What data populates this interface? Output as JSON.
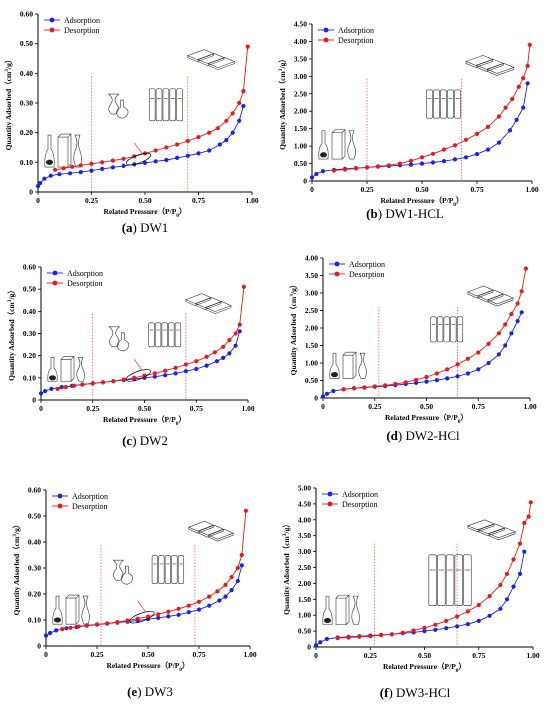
{
  "legend": {
    "adsorption": "Adsorption",
    "desorption": "Desorption"
  },
  "colors": {
    "adsorption": "#1a22e6",
    "desorption": "#e61a1a",
    "divider": "#e05050"
  },
  "x_axis_label": "Related Pressure（P/P",
  "x_axis_label_sub": "0",
  "x_axis_label_end": "）",
  "y_axis_label": "Quantity Adsorbed（cm",
  "y_axis_label_sup": "3",
  "y_axis_label_end": "/g）",
  "icons": [
    "ink-bottle-pore-icon",
    "slit-pore-icon",
    "cylindrical-pore-icon",
    "stacked-plate-pore-icon"
  ],
  "chart_data": [
    {
      "type": "line",
      "caption_letter": "(a)",
      "caption_name": "DW1",
      "xlim": [
        0,
        1.0
      ],
      "ylim": [
        0,
        0.6
      ],
      "xticks": [
        "0",
        "0.25",
        "0.50",
        "0.75",
        "1.00"
      ],
      "xtick_values": [
        0,
        0.25,
        0.5,
        0.75,
        1.0
      ],
      "yticks": [
        "0",
        "0.10",
        "0.20",
        "0.30",
        "0.40",
        "0.50",
        "0.60"
      ],
      "ytick_values": [
        0,
        0.1,
        0.2,
        0.3,
        0.4,
        0.5,
        0.6
      ],
      "dividers": [
        0.25,
        0.7
      ],
      "series": [
        {
          "name": "Adsorption",
          "x": [
            0.0,
            0.01,
            0.03,
            0.06,
            0.1,
            0.15,
            0.2,
            0.25,
            0.3,
            0.35,
            0.4,
            0.45,
            0.5,
            0.55,
            0.6,
            0.65,
            0.7,
            0.75,
            0.8,
            0.85,
            0.88,
            0.91,
            0.94,
            0.96
          ],
          "y": [
            0.02,
            0.03,
            0.045,
            0.055,
            0.06,
            0.063,
            0.067,
            0.072,
            0.078,
            0.083,
            0.088,
            0.093,
            0.098,
            0.103,
            0.108,
            0.115,
            0.122,
            0.13,
            0.14,
            0.16,
            0.175,
            0.2,
            0.24,
            0.29
          ]
        },
        {
          "name": "Desorption",
          "x": [
            0.08,
            0.12,
            0.16,
            0.2,
            0.25,
            0.3,
            0.35,
            0.4,
            0.45,
            0.5,
            0.55,
            0.6,
            0.65,
            0.7,
            0.75,
            0.8,
            0.84,
            0.88,
            0.91,
            0.94,
            0.96,
            0.98
          ],
          "y": [
            0.075,
            0.08,
            0.085,
            0.09,
            0.095,
            0.1,
            0.106,
            0.112,
            0.12,
            0.13,
            0.14,
            0.15,
            0.16,
            0.172,
            0.185,
            0.2,
            0.215,
            0.24,
            0.265,
            0.3,
            0.34,
            0.49
          ]
        }
      ]
    },
    {
      "type": "line",
      "caption_letter": "(b)",
      "caption_name": "DW1-HCL",
      "xlim": [
        0,
        1.0
      ],
      "ylim": [
        0,
        4.5
      ],
      "xticks": [
        "0",
        "0.25",
        "0.50",
        "0.75",
        "1.00"
      ],
      "xtick_values": [
        0,
        0.25,
        0.5,
        0.75,
        1.0
      ],
      "yticks": [
        "0",
        "0.50",
        "1.00",
        "1.50",
        "2.00",
        "2.50",
        "3.00",
        "3.50",
        "4.00",
        "4.50"
      ],
      "ytick_values": [
        0,
        0.5,
        1.0,
        1.5,
        2.0,
        2.5,
        3.0,
        3.5,
        4.0,
        4.5
      ],
      "dividers": [
        0.25,
        0.68
      ],
      "series": [
        {
          "name": "Adsorption",
          "x": [
            0.0,
            0.02,
            0.05,
            0.1,
            0.15,
            0.2,
            0.25,
            0.3,
            0.35,
            0.4,
            0.45,
            0.5,
            0.55,
            0.6,
            0.65,
            0.7,
            0.75,
            0.8,
            0.85,
            0.9,
            0.93,
            0.96,
            0.98
          ],
          "y": [
            0.1,
            0.2,
            0.28,
            0.32,
            0.35,
            0.37,
            0.39,
            0.41,
            0.43,
            0.45,
            0.47,
            0.5,
            0.53,
            0.57,
            0.62,
            0.68,
            0.77,
            0.9,
            1.1,
            1.45,
            1.75,
            2.1,
            2.8
          ]
        },
        {
          "name": "Desorption",
          "x": [
            0.1,
            0.15,
            0.2,
            0.25,
            0.3,
            0.35,
            0.4,
            0.45,
            0.5,
            0.55,
            0.6,
            0.65,
            0.7,
            0.75,
            0.8,
            0.85,
            0.88,
            0.91,
            0.94,
            0.96,
            0.98,
            0.99
          ],
          "y": [
            0.3,
            0.33,
            0.36,
            0.39,
            0.42,
            0.45,
            0.5,
            0.58,
            0.68,
            0.78,
            0.9,
            1.02,
            1.18,
            1.35,
            1.55,
            1.85,
            2.1,
            2.35,
            2.7,
            2.95,
            3.3,
            3.9
          ]
        }
      ]
    },
    {
      "type": "line",
      "caption_letter": "(c)",
      "caption_name": "DW2",
      "xlim": [
        0,
        1.0
      ],
      "ylim": [
        0,
        0.6
      ],
      "xticks": [
        "0",
        "0.25",
        "0.50",
        "0.75",
        "1.00"
      ],
      "xtick_values": [
        0,
        0.25,
        0.5,
        0.75,
        1.0
      ],
      "yticks": [
        "0",
        "0.10",
        "0.20",
        "0.30",
        "0.40",
        "0.50",
        "0.60"
      ],
      "ytick_values": [
        0,
        0.1,
        0.2,
        0.3,
        0.4,
        0.5,
        0.6
      ],
      "dividers": [
        0.25,
        0.7
      ],
      "series": [
        {
          "name": "Adsorption",
          "x": [
            0.0,
            0.02,
            0.05,
            0.1,
            0.15,
            0.2,
            0.25,
            0.3,
            0.35,
            0.4,
            0.45,
            0.5,
            0.55,
            0.6,
            0.65,
            0.7,
            0.75,
            0.8,
            0.85,
            0.88,
            0.91,
            0.94,
            0.96
          ],
          "y": [
            0.03,
            0.04,
            0.05,
            0.058,
            0.064,
            0.07,
            0.075,
            0.08,
            0.085,
            0.09,
            0.095,
            0.1,
            0.105,
            0.112,
            0.12,
            0.13,
            0.14,
            0.155,
            0.175,
            0.19,
            0.21,
            0.245,
            0.31
          ]
        },
        {
          "name": "Desorption",
          "x": [
            0.08,
            0.12,
            0.16,
            0.2,
            0.25,
            0.3,
            0.35,
            0.4,
            0.45,
            0.5,
            0.55,
            0.6,
            0.65,
            0.7,
            0.75,
            0.8,
            0.84,
            0.88,
            0.91,
            0.94,
            0.96,
            0.98
          ],
          "y": [
            0.05,
            0.058,
            0.065,
            0.07,
            0.075,
            0.08,
            0.085,
            0.092,
            0.1,
            0.11,
            0.12,
            0.132,
            0.145,
            0.16,
            0.175,
            0.195,
            0.215,
            0.24,
            0.27,
            0.3,
            0.34,
            0.51
          ]
        }
      ]
    },
    {
      "type": "line",
      "caption_letter": "(d)",
      "caption_name": "DW2-HCl",
      "xlim": [
        0,
        1.0
      ],
      "ylim": [
        0,
        4.0
      ],
      "xticks": [
        "0",
        "0.25",
        "0.50",
        "0.75",
        "1.00"
      ],
      "xtick_values": [
        0,
        0.25,
        0.5,
        0.75,
        1.0
      ],
      "yticks": [
        "0",
        "0.50",
        "1.00",
        "1.50",
        "2.00",
        "2.50",
        "3.00",
        "3.50",
        "4.00"
      ],
      "ytick_values": [
        0,
        0.5,
        1.0,
        1.5,
        2.0,
        2.5,
        3.0,
        3.5,
        4.0
      ],
      "dividers": [
        0.27,
        0.65
      ],
      "series": [
        {
          "name": "Adsorption",
          "x": [
            0.0,
            0.02,
            0.05,
            0.1,
            0.15,
            0.2,
            0.25,
            0.3,
            0.35,
            0.4,
            0.45,
            0.5,
            0.55,
            0.6,
            0.65,
            0.7,
            0.75,
            0.8,
            0.85,
            0.88,
            0.91,
            0.94,
            0.96
          ],
          "y": [
            0.05,
            0.12,
            0.2,
            0.25,
            0.28,
            0.3,
            0.32,
            0.34,
            0.37,
            0.4,
            0.43,
            0.47,
            0.51,
            0.56,
            0.62,
            0.7,
            0.82,
            1.0,
            1.25,
            1.5,
            1.85,
            2.2,
            2.45
          ]
        },
        {
          "name": "Desorption",
          "x": [
            0.1,
            0.15,
            0.2,
            0.25,
            0.3,
            0.35,
            0.4,
            0.45,
            0.5,
            0.55,
            0.6,
            0.65,
            0.7,
            0.75,
            0.8,
            0.85,
            0.88,
            0.91,
            0.94,
            0.96,
            0.98
          ],
          "y": [
            0.25,
            0.28,
            0.3,
            0.33,
            0.36,
            0.4,
            0.45,
            0.52,
            0.6,
            0.7,
            0.82,
            0.96,
            1.12,
            1.3,
            1.55,
            1.85,
            2.1,
            2.4,
            2.7,
            3.05,
            3.7
          ]
        }
      ]
    },
    {
      "type": "line",
      "caption_letter": "(e)",
      "caption_name": "DW3",
      "xlim": [
        0,
        1.0
      ],
      "ylim": [
        0,
        0.6
      ],
      "xticks": [
        "0",
        "0.25",
        "0.50",
        "0.75",
        "1.00"
      ],
      "xtick_values": [
        0,
        0.25,
        0.5,
        0.75,
        1.0
      ],
      "yticks": [
        "0",
        "0.10",
        "0.20",
        "0.30",
        "0.40",
        "0.50",
        "0.60"
      ],
      "ytick_values": [
        0,
        0.1,
        0.2,
        0.3,
        0.4,
        0.5,
        0.6
      ],
      "dividers": [
        0.27,
        0.73
      ],
      "series": [
        {
          "name": "Adsorption",
          "x": [
            0.0,
            0.02,
            0.05,
            0.1,
            0.15,
            0.2,
            0.25,
            0.3,
            0.35,
            0.4,
            0.45,
            0.5,
            0.55,
            0.6,
            0.65,
            0.7,
            0.75,
            0.8,
            0.85,
            0.88,
            0.91,
            0.94,
            0.96
          ],
          "y": [
            0.04,
            0.05,
            0.06,
            0.068,
            0.073,
            0.078,
            0.082,
            0.086,
            0.09,
            0.094,
            0.098,
            0.103,
            0.108,
            0.114,
            0.12,
            0.13,
            0.14,
            0.155,
            0.175,
            0.19,
            0.215,
            0.25,
            0.31
          ]
        },
        {
          "name": "Desorption",
          "x": [
            0.08,
            0.12,
            0.16,
            0.2,
            0.25,
            0.3,
            0.35,
            0.4,
            0.45,
            0.5,
            0.55,
            0.6,
            0.65,
            0.7,
            0.75,
            0.8,
            0.84,
            0.88,
            0.91,
            0.94,
            0.96,
            0.98
          ],
          "y": [
            0.065,
            0.07,
            0.075,
            0.08,
            0.083,
            0.087,
            0.092,
            0.098,
            0.105,
            0.113,
            0.122,
            0.132,
            0.143,
            0.155,
            0.17,
            0.19,
            0.21,
            0.235,
            0.265,
            0.3,
            0.35,
            0.52
          ]
        }
      ]
    },
    {
      "type": "line",
      "caption_letter": "(f)",
      "caption_name": "DW3-HCl",
      "xlim": [
        0,
        1.0
      ],
      "ylim": [
        0,
        5.0
      ],
      "xticks": [
        "0",
        "0.25",
        "0.50",
        "0.75",
        "1.00"
      ],
      "xtick_values": [
        0,
        0.25,
        0.5,
        0.75,
        1.0
      ],
      "yticks": [
        "0",
        "0.50",
        "1.00",
        "1.50",
        "2.00",
        "2.50",
        "3.00",
        "3.50",
        "4.00",
        "4.50",
        "5.00"
      ],
      "ytick_values": [
        0,
        0.5,
        1.0,
        1.5,
        2.0,
        2.5,
        3.0,
        3.5,
        4.0,
        4.5,
        5.0
      ],
      "dividers": [
        0.27,
        0.65
      ],
      "series": [
        {
          "name": "Adsorption",
          "x": [
            0.0,
            0.02,
            0.05,
            0.1,
            0.15,
            0.2,
            0.25,
            0.3,
            0.35,
            0.4,
            0.45,
            0.5,
            0.55,
            0.6,
            0.65,
            0.7,
            0.75,
            0.8,
            0.85,
            0.88,
            0.91,
            0.94,
            0.96
          ],
          "y": [
            0.05,
            0.15,
            0.25,
            0.3,
            0.32,
            0.34,
            0.36,
            0.38,
            0.4,
            0.43,
            0.46,
            0.5,
            0.54,
            0.59,
            0.65,
            0.72,
            0.82,
            0.98,
            1.2,
            1.5,
            1.9,
            2.3,
            3.0
          ]
        },
        {
          "name": "Desorption",
          "x": [
            0.1,
            0.15,
            0.2,
            0.25,
            0.3,
            0.35,
            0.4,
            0.45,
            0.5,
            0.55,
            0.6,
            0.65,
            0.7,
            0.75,
            0.8,
            0.85,
            0.88,
            0.91,
            0.94,
            0.96,
            0.98,
            0.99
          ],
          "y": [
            0.28,
            0.3,
            0.32,
            0.34,
            0.37,
            0.4,
            0.45,
            0.52,
            0.6,
            0.7,
            0.82,
            0.96,
            1.12,
            1.32,
            1.6,
            1.95,
            2.3,
            2.75,
            3.25,
            3.9,
            4.1,
            4.55
          ]
        }
      ]
    }
  ]
}
